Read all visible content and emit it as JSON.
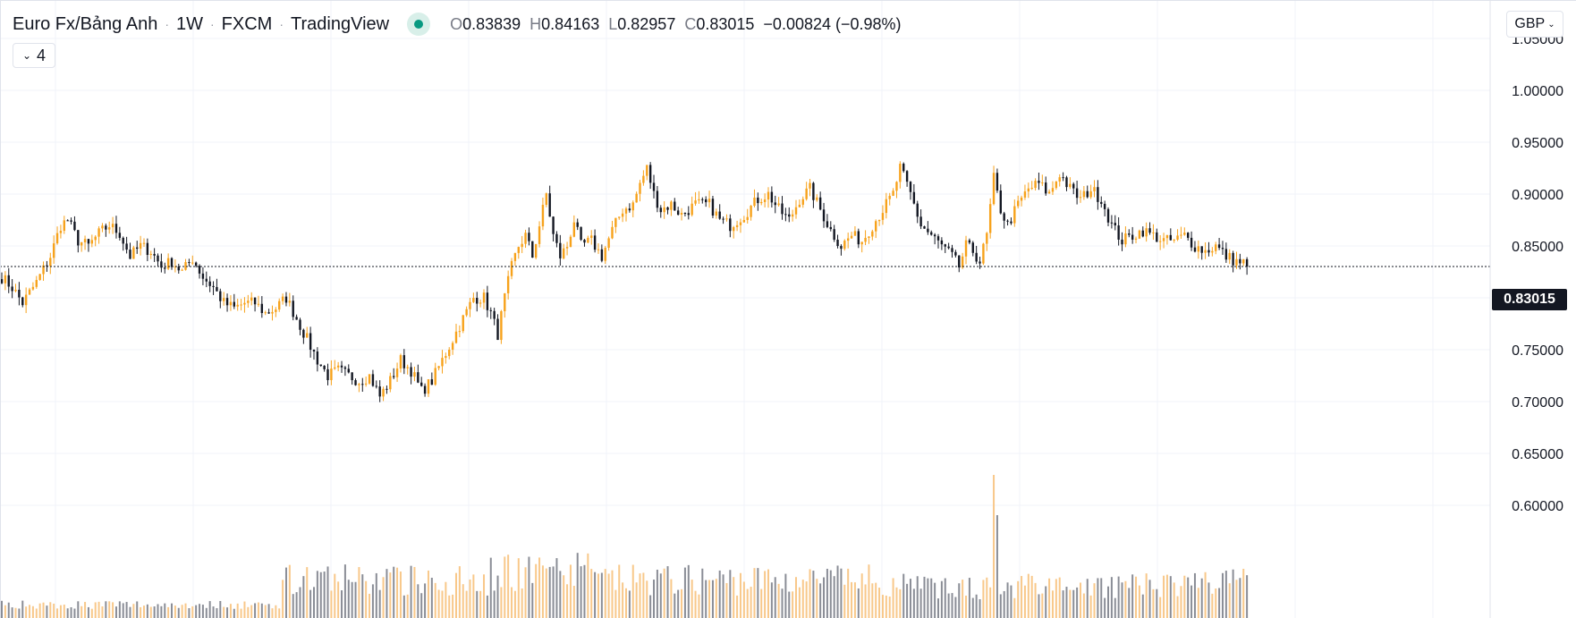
{
  "legend": {
    "symbol": "Euro Fx/Bảng Anh",
    "interval": "1W",
    "exchange": "FXCM",
    "source": "TradingView",
    "ohlc": {
      "o_label": "O",
      "o": "0.83839",
      "h_label": "H",
      "h": "0.84163",
      "l_label": "L",
      "l": "0.82957",
      "c_label": "C",
      "c": "0.83015",
      "change": "−0.00824 (−0.98%)"
    }
  },
  "collapse_button": {
    "count": "4"
  },
  "currency_button": {
    "label": "GBP"
  },
  "last_price_label": "0.83015",
  "colors": {
    "up": "#f7a21b",
    "down": "#131722",
    "volume_up": "#f8c88a",
    "volume_down": "#8a8d96",
    "grid": "#f0f3fa",
    "axis_text": "#131722",
    "live": "#089981"
  },
  "chart_data": {
    "type": "candlestick",
    "interval": "1W",
    "y_axis": {
      "ticks": [
        "1.05000",
        "1.00000",
        "0.95000",
        "0.90000",
        "0.85000",
        "0.80000",
        "0.75000",
        "0.70000",
        "0.65000",
        "0.60000"
      ],
      "range": [
        0.58,
        1.055
      ],
      "side": "right"
    },
    "last_close": 0.83015,
    "grid": true,
    "path_anchors": [
      [
        0,
        0.82
      ],
      [
        3,
        0.81
      ],
      [
        6,
        0.795
      ],
      [
        10,
        0.815
      ],
      [
        14,
        0.84
      ],
      [
        17,
        0.87
      ],
      [
        19,
        0.875
      ],
      [
        22,
        0.855
      ],
      [
        25,
        0.85
      ],
      [
        28,
        0.862
      ],
      [
        31,
        0.87
      ],
      [
        34,
        0.862
      ],
      [
        37,
        0.84
      ],
      [
        40,
        0.85
      ],
      [
        43,
        0.845
      ],
      [
        46,
        0.83
      ],
      [
        49,
        0.835
      ],
      [
        52,
        0.825
      ],
      [
        55,
        0.838
      ],
      [
        58,
        0.82
      ],
      [
        61,
        0.81
      ],
      [
        64,
        0.795
      ],
      [
        67,
        0.79
      ],
      [
        70,
        0.795
      ],
      [
        73,
        0.795
      ],
      [
        76,
        0.785
      ],
      [
        79,
        0.79
      ],
      [
        82,
        0.8
      ],
      [
        85,
        0.78
      ],
      [
        88,
        0.76
      ],
      [
        91,
        0.74
      ],
      [
        94,
        0.725
      ],
      [
        97,
        0.73
      ],
      [
        100,
        0.725
      ],
      [
        103,
        0.72
      ],
      [
        106,
        0.725
      ],
      [
        109,
        0.705
      ],
      [
        112,
        0.72
      ],
      [
        115,
        0.74
      ],
      [
        118,
        0.73
      ],
      [
        121,
        0.71
      ],
      [
        124,
        0.72
      ],
      [
        127,
        0.74
      ],
      [
        130,
        0.76
      ],
      [
        133,
        0.78
      ],
      [
        136,
        0.8
      ],
      [
        139,
        0.8
      ],
      [
        141,
        0.785
      ],
      [
        143,
        0.765
      ],
      [
        145,
        0.8
      ],
      [
        147,
        0.83
      ],
      [
        149,
        0.85
      ],
      [
        151,
        0.86
      ],
      [
        153,
        0.84
      ],
      [
        155,
        0.87
      ],
      [
        157,
        0.9
      ],
      [
        159,
        0.86
      ],
      [
        161,
        0.84
      ],
      [
        163,
        0.85
      ],
      [
        165,
        0.875
      ],
      [
        167,
        0.85
      ],
      [
        170,
        0.855
      ],
      [
        173,
        0.84
      ],
      [
        176,
        0.865
      ],
      [
        179,
        0.885
      ],
      [
        182,
        0.89
      ],
      [
        184,
        0.91
      ],
      [
        186,
        0.925
      ],
      [
        188,
        0.9
      ],
      [
        190,
        0.885
      ],
      [
        193,
        0.89
      ],
      [
        196,
        0.88
      ],
      [
        200,
        0.89
      ],
      [
        204,
        0.89
      ],
      [
        207,
        0.875
      ],
      [
        210,
        0.87
      ],
      [
        214,
        0.88
      ],
      [
        218,
        0.895
      ],
      [
        221,
        0.9
      ],
      [
        224,
        0.885
      ],
      [
        227,
        0.875
      ],
      [
        230,
        0.895
      ],
      [
        233,
        0.905
      ],
      [
        236,
        0.885
      ],
      [
        239,
        0.865
      ],
      [
        242,
        0.85
      ],
      [
        245,
        0.86
      ],
      [
        248,
        0.855
      ],
      [
        251,
        0.87
      ],
      [
        254,
        0.885
      ],
      [
        257,
        0.9
      ],
      [
        259,
        0.925
      ],
      [
        262,
        0.9
      ],
      [
        265,
        0.87
      ],
      [
        268,
        0.86
      ],
      [
        271,
        0.85
      ],
      [
        274,
        0.84
      ],
      [
        276,
        0.83
      ],
      [
        278,
        0.85
      ],
      [
        280,
        0.845
      ],
      [
        282,
        0.835
      ],
      [
        284,
        0.86
      ],
      [
        286,
        0.915
      ],
      [
        288,
        0.885
      ],
      [
        290,
        0.87
      ],
      [
        293,
        0.89
      ],
      [
        296,
        0.905
      ],
      [
        299,
        0.91
      ],
      [
        302,
        0.9
      ],
      [
        305,
        0.92
      ],
      [
        308,
        0.905
      ],
      [
        311,
        0.895
      ],
      [
        314,
        0.905
      ],
      [
        317,
        0.895
      ],
      [
        320,
        0.87
      ],
      [
        323,
        0.855
      ],
      [
        326,
        0.86
      ],
      [
        329,
        0.865
      ],
      [
        332,
        0.86
      ],
      [
        335,
        0.855
      ],
      [
        338,
        0.855
      ],
      [
        341,
        0.86
      ],
      [
        344,
        0.85
      ],
      [
        347,
        0.845
      ],
      [
        350,
        0.85
      ],
      [
        353,
        0.84
      ],
      [
        356,
        0.835
      ],
      [
        359,
        0.833
      ]
    ],
    "volume_peak_week": 286
  }
}
